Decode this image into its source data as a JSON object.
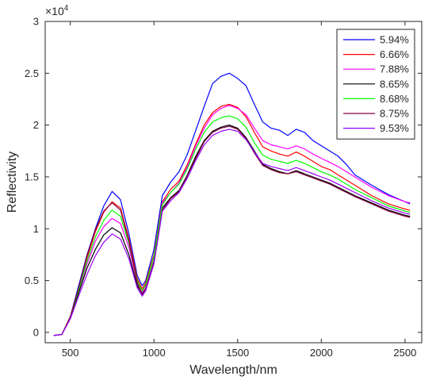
{
  "chart_data": {
    "type": "line",
    "xlabel": "Wavelength/nm",
    "ylabel": "Reflectivity",
    "y_multiplier_base": "×10",
    "y_multiplier_exp": "4",
    "xlim": [
      350,
      2600
    ],
    "ylim": [
      -0.1,
      3.0
    ],
    "y_scale": 10000,
    "x_ticks": [
      500,
      1000,
      1500,
      2000,
      2500
    ],
    "y_ticks": [
      0,
      0.5,
      1,
      1.5,
      2,
      2.5,
      3
    ],
    "y_tick_labels": [
      "0",
      "0.5",
      "1",
      "1.5",
      "2",
      "2.5",
      "3"
    ],
    "grid": false,
    "legend_position": "top-right",
    "x": [
      400,
      450,
      500,
      550,
      600,
      650,
      700,
      750,
      800,
      850,
      900,
      930,
      950,
      1000,
      1050,
      1100,
      1150,
      1200,
      1250,
      1300,
      1350,
      1400,
      1450,
      1500,
      1550,
      1600,
      1650,
      1700,
      1750,
      1800,
      1850,
      1900,
      1950,
      2000,
      2050,
      2100,
      2150,
      2200,
      2300,
      2400,
      2500,
      2530
    ],
    "series": [
      {
        "name": "5.94%",
        "color": "#0000ff",
        "values": [
          -0.03,
          -0.02,
          0.15,
          0.45,
          0.75,
          1.0,
          1.22,
          1.36,
          1.28,
          0.95,
          0.55,
          0.45,
          0.5,
          0.8,
          1.32,
          1.45,
          1.55,
          1.72,
          1.95,
          2.18,
          2.4,
          2.47,
          2.5,
          2.45,
          2.38,
          2.2,
          2.03,
          1.97,
          1.95,
          1.9,
          1.96,
          1.93,
          1.85,
          1.8,
          1.75,
          1.7,
          1.62,
          1.52,
          1.42,
          1.33,
          1.26,
          1.24
        ]
      },
      {
        "name": "6.66%",
        "color": "#ff0000",
        "values": [
          -0.03,
          -0.02,
          0.15,
          0.42,
          0.72,
          0.97,
          1.16,
          1.26,
          1.2,
          0.9,
          0.52,
          0.42,
          0.48,
          0.75,
          1.26,
          1.38,
          1.46,
          1.62,
          1.82,
          2.0,
          2.12,
          2.18,
          2.2,
          2.17,
          2.08,
          1.93,
          1.79,
          1.75,
          1.72,
          1.7,
          1.74,
          1.7,
          1.65,
          1.6,
          1.57,
          1.52,
          1.47,
          1.42,
          1.32,
          1.24,
          1.19,
          1.18
        ]
      },
      {
        "name": "7.88%",
        "color": "#ff00ff",
        "values": [
          -0.03,
          -0.02,
          0.15,
          0.4,
          0.66,
          0.88,
          1.02,
          1.1,
          1.05,
          0.82,
          0.48,
          0.38,
          0.45,
          0.72,
          1.25,
          1.35,
          1.44,
          1.6,
          1.8,
          1.97,
          2.1,
          2.16,
          2.19,
          2.16,
          2.1,
          1.97,
          1.85,
          1.81,
          1.79,
          1.77,
          1.8,
          1.77,
          1.72,
          1.68,
          1.64,
          1.6,
          1.55,
          1.5,
          1.4,
          1.32,
          1.26,
          1.25
        ]
      },
      {
        "name": "8.65%",
        "color": "#000000",
        "values": [
          -0.03,
          -0.02,
          0.15,
          0.38,
          0.62,
          0.8,
          0.94,
          1.01,
          0.96,
          0.75,
          0.45,
          0.37,
          0.42,
          0.68,
          1.2,
          1.3,
          1.37,
          1.52,
          1.7,
          1.85,
          1.94,
          1.98,
          2.0,
          1.97,
          1.88,
          1.75,
          1.62,
          1.58,
          1.55,
          1.53,
          1.56,
          1.53,
          1.5,
          1.47,
          1.44,
          1.4,
          1.36,
          1.32,
          1.25,
          1.18,
          1.13,
          1.12
        ]
      },
      {
        "name": "8.68%",
        "color": "#00ff00",
        "values": [
          -0.03,
          -0.02,
          0.15,
          0.41,
          0.69,
          0.92,
          1.08,
          1.18,
          1.12,
          0.86,
          0.5,
          0.4,
          0.46,
          0.73,
          1.23,
          1.35,
          1.43,
          1.58,
          1.77,
          1.93,
          2.03,
          2.07,
          2.09,
          2.06,
          1.98,
          1.83,
          1.71,
          1.67,
          1.65,
          1.63,
          1.66,
          1.63,
          1.59,
          1.55,
          1.52,
          1.48,
          1.43,
          1.38,
          1.3,
          1.22,
          1.17,
          1.16
        ]
      },
      {
        "name": "8.75%",
        "color": "#800040",
        "values": [
          -0.03,
          -0.02,
          0.15,
          0.43,
          0.74,
          0.99,
          1.17,
          1.25,
          1.18,
          0.88,
          0.48,
          0.36,
          0.42,
          0.67,
          1.18,
          1.29,
          1.36,
          1.51,
          1.68,
          1.84,
          1.93,
          1.97,
          1.99,
          1.96,
          1.87,
          1.73,
          1.61,
          1.57,
          1.54,
          1.53,
          1.55,
          1.52,
          1.49,
          1.46,
          1.43,
          1.39,
          1.35,
          1.31,
          1.24,
          1.17,
          1.12,
          1.11
        ]
      },
      {
        "name": "9.53%",
        "color": "#9900ff",
        "values": [
          -0.03,
          -0.02,
          0.13,
          0.35,
          0.56,
          0.74,
          0.87,
          0.95,
          0.9,
          0.71,
          0.43,
          0.35,
          0.4,
          0.66,
          1.17,
          1.27,
          1.35,
          1.49,
          1.66,
          1.81,
          1.9,
          1.94,
          1.96,
          1.94,
          1.86,
          1.74,
          1.63,
          1.6,
          1.58,
          1.56,
          1.59,
          1.56,
          1.53,
          1.5,
          1.47,
          1.43,
          1.39,
          1.35,
          1.27,
          1.2,
          1.15,
          1.14
        ]
      }
    ]
  }
}
